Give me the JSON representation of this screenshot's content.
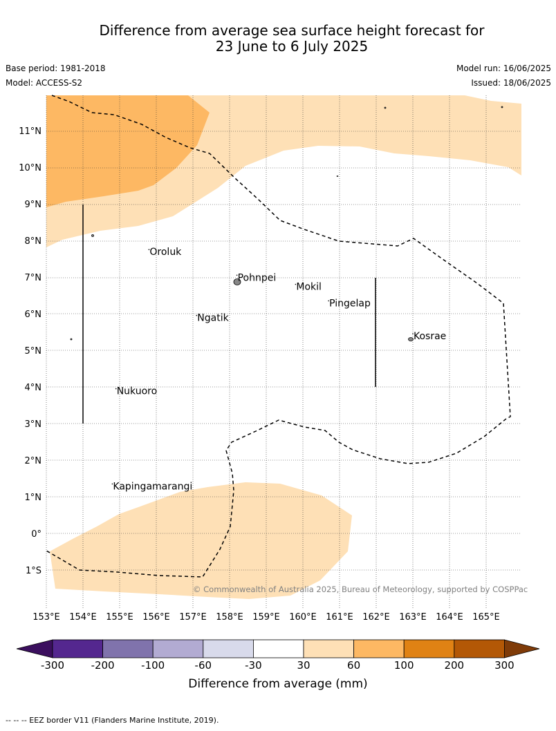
{
  "header": {
    "title_line1": "Difference from average sea surface height forecast for",
    "title_line2": "23 June to 6 July 2025",
    "base_period": "Base period: 1981-2018",
    "model": "Model: ACCESS-S2",
    "model_run": "Model run: 16/06/2025",
    "issued": "Issued: 18/06/2025"
  },
  "map": {
    "lat_labels": [
      "11°N",
      "10°N",
      "9°N",
      "8°N",
      "7°N",
      "6°N",
      "5°N",
      "4°N",
      "3°N",
      "2°N",
      "1°N",
      "0°",
      "1°S"
    ],
    "lon_labels": [
      "153°E",
      "154°E",
      "155°E",
      "156°E",
      "157°E",
      "158°E",
      "159°E",
      "160°E",
      "161°E",
      "162°E",
      "163°E",
      "164°E",
      "165°E"
    ],
    "places": [
      {
        "name": "Oroluk",
        "lon": 155.8,
        "lat": 7.6
      },
      {
        "name": "Pohnpei",
        "lon": 158.2,
        "lat": 6.9
      },
      {
        "name": "Mokil",
        "lon": 159.8,
        "lat": 6.65
      },
      {
        "name": "Pingelap",
        "lon": 160.7,
        "lat": 6.2
      },
      {
        "name": "Ngatik",
        "lon": 157.1,
        "lat": 5.8
      },
      {
        "name": "Kosrae",
        "lon": 163.0,
        "lat": 5.3
      },
      {
        "name": "Nukuoro",
        "lon": 154.9,
        "lat": 3.8
      },
      {
        "name": "Kapingamarangi",
        "lon": 154.8,
        "lat": 1.2
      }
    ],
    "copyright": "© Commonwealth of Australia 2025, Bureau of Meteorology, supported by COSPPac"
  },
  "colorbar": {
    "label": "Difference from average (mm)",
    "ticks": [
      "-300",
      "-200",
      "-100",
      "-60",
      "-30",
      "30",
      "60",
      "100",
      "200",
      "300"
    ],
    "colors": [
      "#3b0f5e",
      "#54278f",
      "#8073ac",
      "#b2abd2",
      "#d8daeb",
      "#ffffff",
      "#fee0b6",
      "#fdb863",
      "#e08214",
      "#b35806",
      "#7f3b08"
    ]
  },
  "footer": {
    "legend": "-- -- -- EEZ border V11 (Flanders Marine Institute, 2019)."
  }
}
